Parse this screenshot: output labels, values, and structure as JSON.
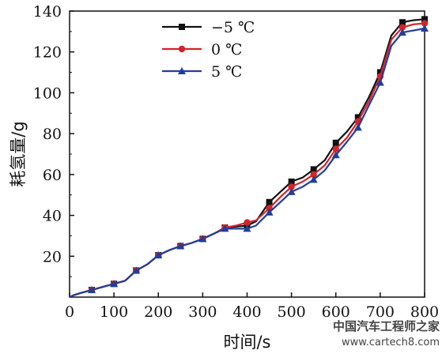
{
  "chart_data": {
    "type": "line",
    "xlabel": "时间/s",
    "ylabel": "耗氢量/g",
    "xlim": [
      0,
      800
    ],
    "ylim": [
      0,
      140
    ],
    "xticks": [
      0,
      100,
      200,
      300,
      400,
      500,
      600,
      700,
      800
    ],
    "yticks": [
      20,
      40,
      60,
      80,
      100,
      120,
      140
    ],
    "grid": false,
    "legend_position": "top-left",
    "series": [
      {
        "name": "−5 ℃",
        "color": "#111111",
        "marker": "square",
        "x": [
          0,
          10,
          25,
          50,
          75,
          100,
          125,
          150,
          175,
          200,
          225,
          250,
          275,
          300,
          325,
          350,
          375,
          400,
          420,
          450,
          475,
          500,
          525,
          550,
          575,
          600,
          625,
          650,
          675,
          700,
          725,
          750,
          775,
          800
        ],
        "y": [
          0,
          1,
          2,
          3.5,
          5,
          6.5,
          8,
          13,
          16,
          20.5,
          23,
          25,
          26.5,
          28.5,
          31,
          34,
          34.5,
          35,
          37,
          46.5,
          51.5,
          56.5,
          58.5,
          62.5,
          67,
          75.5,
          81,
          88,
          98,
          110,
          128,
          134.5,
          135.5,
          136
        ]
      },
      {
        "name": "0 ℃",
        "color": "#d4232b",
        "marker": "circle",
        "x": [
          0,
          10,
          25,
          50,
          75,
          100,
          125,
          150,
          175,
          200,
          225,
          250,
          275,
          300,
          325,
          350,
          375,
          400,
          420,
          450,
          475,
          500,
          525,
          550,
          575,
          600,
          625,
          650,
          675,
          700,
          725,
          750,
          775,
          800
        ],
        "y": [
          0,
          1,
          2,
          3.5,
          5,
          6.5,
          8,
          13,
          16,
          20.5,
          23,
          25,
          26.5,
          28.5,
          31,
          34,
          35,
          36.5,
          37.5,
          43.5,
          49,
          54,
          56.5,
          60,
          64.5,
          72.5,
          78,
          86,
          96,
          108,
          126,
          132,
          133.5,
          134
        ]
      },
      {
        "name": "5 ℃",
        "color": "#1f3f99",
        "marker": "triangle",
        "x": [
          0,
          10,
          25,
          50,
          75,
          100,
          125,
          150,
          175,
          200,
          225,
          250,
          275,
          300,
          325,
          350,
          375,
          400,
          420,
          450,
          475,
          500,
          525,
          550,
          575,
          600,
          625,
          650,
          675,
          700,
          725,
          750,
          775,
          800
        ],
        "y": [
          0,
          1,
          2,
          3.5,
          5,
          6.5,
          8,
          13,
          16,
          20.5,
          23,
          25,
          26.5,
          28.5,
          31,
          33.5,
          33.5,
          33.5,
          35,
          41.5,
          46.5,
          51.5,
          54,
          57.5,
          62,
          69.5,
          76,
          83,
          94,
          105,
          123,
          129.5,
          130.5,
          131.5
        ]
      }
    ]
  },
  "watermark": {
    "line1": "中国汽车工程师之家",
    "line2": "www.cartech8.com"
  }
}
